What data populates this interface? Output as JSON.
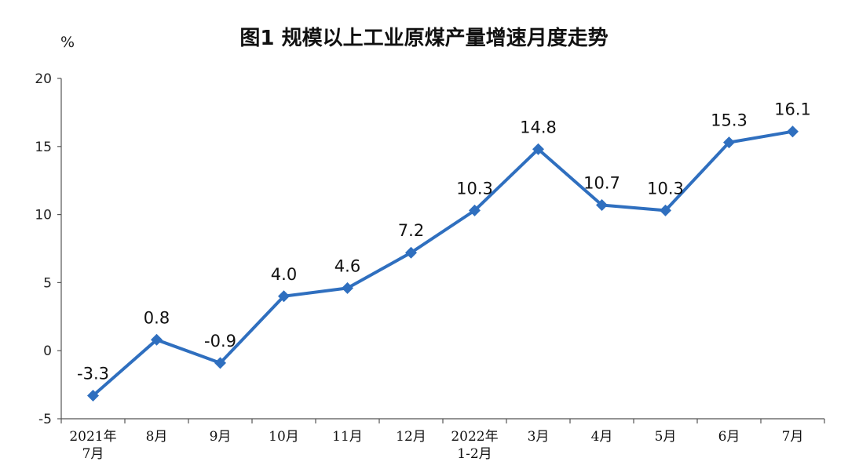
{
  "chart_data": {
    "type": "line",
    "title": "图1  规模以上工业原煤产量增速月度走势",
    "ylabel": "%",
    "ylim": [
      -5,
      20
    ],
    "yticks": [
      -5,
      0,
      5,
      10,
      15,
      20
    ],
    "categories": [
      [
        "2021年",
        "7月"
      ],
      [
        "8月"
      ],
      [
        "9月"
      ],
      [
        "10月"
      ],
      [
        "11月"
      ],
      [
        "12月"
      ],
      [
        "2022年",
        "1-2月"
      ],
      [
        "3月"
      ],
      [
        "4月"
      ],
      [
        "5月"
      ],
      [
        "6月"
      ],
      [
        "7月"
      ]
    ],
    "series": [
      {
        "values": [
          -3.3,
          0.8,
          -0.9,
          4.0,
          4.6,
          7.2,
          10.3,
          14.8,
          10.7,
          10.3,
          15.3,
          16.1
        ],
        "labels": [
          "-3.3",
          "0.8",
          "-0.9",
          "4.0",
          "4.6",
          "7.2",
          "10.3",
          "14.8",
          "10.7",
          "10.3",
          "15.3",
          "16.1"
        ],
        "color": "#2f6fbf"
      }
    ],
    "legend": "none",
    "grid": false
  }
}
